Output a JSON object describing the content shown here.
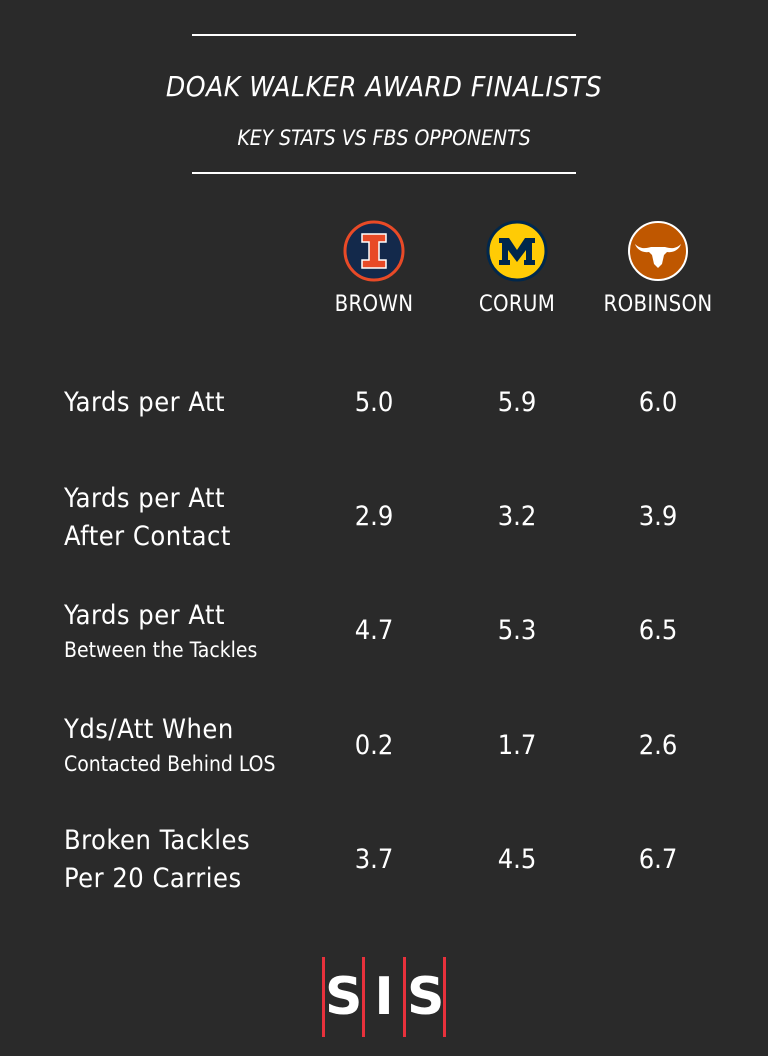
{
  "header": {
    "title": "DOAK WALKER AWARD FINALISTS",
    "subtitle": "KEY STATS VS FBS OPPONENTS"
  },
  "teams": [
    {
      "name": "BROWN",
      "logo": "illinois-logo",
      "color": "#e84a27",
      "bg": "#13294b"
    },
    {
      "name": "CORUM",
      "logo": "michigan-logo",
      "color": "#ffcb05",
      "bg": "#00274c"
    },
    {
      "name": "ROBINSON",
      "logo": "texas-longhorn-logo",
      "color": "#ffffff",
      "bg": "#bf5700"
    }
  ],
  "chart_data": {
    "type": "table",
    "title": "DOAK WALKER AWARD FINALISTS",
    "subtitle": "KEY STATS VS FBS OPPONENTS",
    "columns": [
      "BROWN",
      "CORUM",
      "ROBINSON"
    ],
    "rows": [
      {
        "label_line1": "Yards per Att",
        "label_line2": "",
        "values": [
          "5.0",
          "5.9",
          "6.0"
        ]
      },
      {
        "label_line1": "Yards per Att",
        "label_line2": "After Contact",
        "values": [
          "2.9",
          "3.2",
          "3.9"
        ]
      },
      {
        "label_line1": "Yards per Att",
        "label_line2": "Between the Tackles",
        "values": [
          "4.7",
          "5.3",
          "6.5"
        ]
      },
      {
        "label_line1": "Yds/Att When",
        "label_line2": "Contacted Behind LOS",
        "values": [
          "0.2",
          "1.7",
          "2.6"
        ]
      },
      {
        "label_line1": "Broken Tackles",
        "label_line2": "Per 20 Carries",
        "values": [
          "3.7",
          "4.5",
          "6.7"
        ]
      }
    ]
  },
  "footer": {
    "logo_letters": [
      "S",
      "I",
      "S"
    ],
    "accent_color": "#e8313c"
  }
}
